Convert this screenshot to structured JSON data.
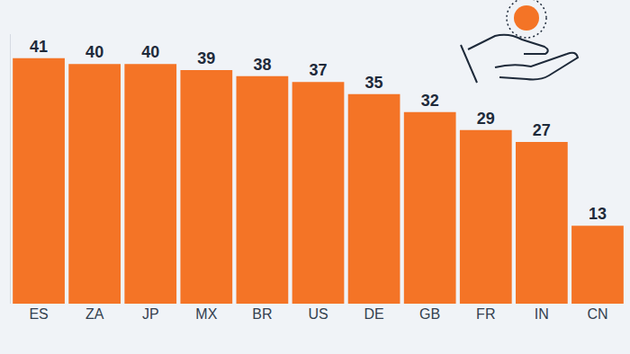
{
  "chart_data": {
    "type": "bar",
    "categories": [
      "ES",
      "ZA",
      "JP",
      "MX",
      "BR",
      "US",
      "DE",
      "GB",
      "FR",
      "IN",
      "CN"
    ],
    "values": [
      41,
      40,
      40,
      39,
      38,
      37,
      35,
      32,
      29,
      27,
      13
    ],
    "color": "#f47426",
    "ylim": [
      0,
      45
    ],
    "yticks": [],
    "grid": false,
    "data_labels": true,
    "tick_labels": "x"
  }
}
